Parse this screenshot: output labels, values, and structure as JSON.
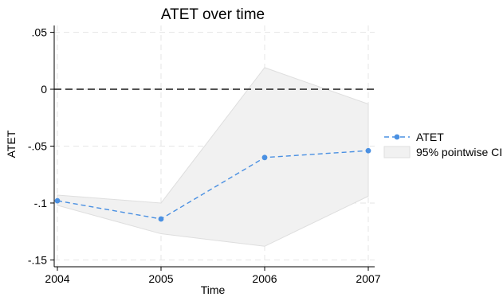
{
  "chart_data": {
    "type": "line",
    "title": "ATET over time",
    "xlabel": "Time",
    "ylabel": "ATET",
    "x": [
      2004,
      2005,
      2006,
      2007
    ],
    "x_tick_labels": [
      "2004",
      "2005",
      "2006",
      "2007"
    ],
    "y_ticks": [
      0.05,
      0,
      -0.05,
      -0.1,
      -0.15
    ],
    "y_tick_labels": [
      ".05",
      "0",
      "-.05",
      "-.1",
      "-.15"
    ],
    "xlim": [
      2004,
      2007
    ],
    "ylim": [
      -0.156,
      0.056
    ],
    "grid": true,
    "reference_line": {
      "y": 0,
      "style": "dashed",
      "color": "#333333"
    },
    "legend_position": "right",
    "series": [
      {
        "name": "ATET",
        "kind": "line",
        "style": "dashed",
        "marker": "circle",
        "color": "#4a90e2",
        "values": [
          -0.098,
          -0.114,
          -0.06,
          -0.054
        ]
      },
      {
        "name": "95% pointwise CI",
        "kind": "band",
        "color": "#f1f1f1",
        "lower": [
          -0.102,
          -0.127,
          -0.138,
          -0.094
        ],
        "upper": [
          -0.093,
          -0.1,
          0.019,
          -0.013
        ]
      }
    ]
  }
}
